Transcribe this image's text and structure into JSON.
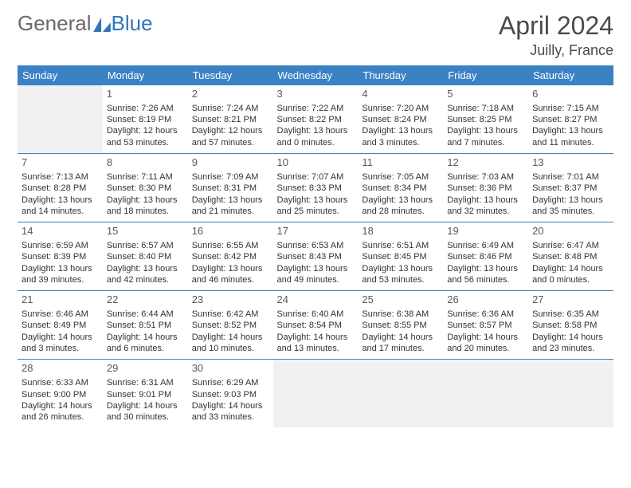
{
  "logo": {
    "text_a": "General",
    "text_b": "Blue",
    "color_a": "#6a6a6a",
    "color_b": "#2f76bb"
  },
  "title": "April 2024",
  "location": "Juilly, France",
  "colors": {
    "header_bg": "#3b82c4",
    "header_text": "#ffffff",
    "row_border": "#3b82c4",
    "empty_bg": "#f1f1f1",
    "text": "#333333",
    "title_color": "#4a4a4a"
  },
  "fonts": {
    "title_size": 32,
    "location_size": 18,
    "dow_size": 13,
    "daynum_size": 13,
    "cell_size": 11
  },
  "dow": [
    "Sunday",
    "Monday",
    "Tuesday",
    "Wednesday",
    "Thursday",
    "Friday",
    "Saturday"
  ],
  "grid": [
    [
      null,
      {
        "n": "1",
        "sunrise": "Sunrise: 7:26 AM",
        "sunset": "Sunset: 8:19 PM",
        "day1": "Daylight: 12 hours",
        "day2": "and 53 minutes."
      },
      {
        "n": "2",
        "sunrise": "Sunrise: 7:24 AM",
        "sunset": "Sunset: 8:21 PM",
        "day1": "Daylight: 12 hours",
        "day2": "and 57 minutes."
      },
      {
        "n": "3",
        "sunrise": "Sunrise: 7:22 AM",
        "sunset": "Sunset: 8:22 PM",
        "day1": "Daylight: 13 hours",
        "day2": "and 0 minutes."
      },
      {
        "n": "4",
        "sunrise": "Sunrise: 7:20 AM",
        "sunset": "Sunset: 8:24 PM",
        "day1": "Daylight: 13 hours",
        "day2": "and 3 minutes."
      },
      {
        "n": "5",
        "sunrise": "Sunrise: 7:18 AM",
        "sunset": "Sunset: 8:25 PM",
        "day1": "Daylight: 13 hours",
        "day2": "and 7 minutes."
      },
      {
        "n": "6",
        "sunrise": "Sunrise: 7:15 AM",
        "sunset": "Sunset: 8:27 PM",
        "day1": "Daylight: 13 hours",
        "day2": "and 11 minutes."
      }
    ],
    [
      {
        "n": "7",
        "sunrise": "Sunrise: 7:13 AM",
        "sunset": "Sunset: 8:28 PM",
        "day1": "Daylight: 13 hours",
        "day2": "and 14 minutes."
      },
      {
        "n": "8",
        "sunrise": "Sunrise: 7:11 AM",
        "sunset": "Sunset: 8:30 PM",
        "day1": "Daylight: 13 hours",
        "day2": "and 18 minutes."
      },
      {
        "n": "9",
        "sunrise": "Sunrise: 7:09 AM",
        "sunset": "Sunset: 8:31 PM",
        "day1": "Daylight: 13 hours",
        "day2": "and 21 minutes."
      },
      {
        "n": "10",
        "sunrise": "Sunrise: 7:07 AM",
        "sunset": "Sunset: 8:33 PM",
        "day1": "Daylight: 13 hours",
        "day2": "and 25 minutes."
      },
      {
        "n": "11",
        "sunrise": "Sunrise: 7:05 AM",
        "sunset": "Sunset: 8:34 PM",
        "day1": "Daylight: 13 hours",
        "day2": "and 28 minutes."
      },
      {
        "n": "12",
        "sunrise": "Sunrise: 7:03 AM",
        "sunset": "Sunset: 8:36 PM",
        "day1": "Daylight: 13 hours",
        "day2": "and 32 minutes."
      },
      {
        "n": "13",
        "sunrise": "Sunrise: 7:01 AM",
        "sunset": "Sunset: 8:37 PM",
        "day1": "Daylight: 13 hours",
        "day2": "and 35 minutes."
      }
    ],
    [
      {
        "n": "14",
        "sunrise": "Sunrise: 6:59 AM",
        "sunset": "Sunset: 8:39 PM",
        "day1": "Daylight: 13 hours",
        "day2": "and 39 minutes."
      },
      {
        "n": "15",
        "sunrise": "Sunrise: 6:57 AM",
        "sunset": "Sunset: 8:40 PM",
        "day1": "Daylight: 13 hours",
        "day2": "and 42 minutes."
      },
      {
        "n": "16",
        "sunrise": "Sunrise: 6:55 AM",
        "sunset": "Sunset: 8:42 PM",
        "day1": "Daylight: 13 hours",
        "day2": "and 46 minutes."
      },
      {
        "n": "17",
        "sunrise": "Sunrise: 6:53 AM",
        "sunset": "Sunset: 8:43 PM",
        "day1": "Daylight: 13 hours",
        "day2": "and 49 minutes."
      },
      {
        "n": "18",
        "sunrise": "Sunrise: 6:51 AM",
        "sunset": "Sunset: 8:45 PM",
        "day1": "Daylight: 13 hours",
        "day2": "and 53 minutes."
      },
      {
        "n": "19",
        "sunrise": "Sunrise: 6:49 AM",
        "sunset": "Sunset: 8:46 PM",
        "day1": "Daylight: 13 hours",
        "day2": "and 56 minutes."
      },
      {
        "n": "20",
        "sunrise": "Sunrise: 6:47 AM",
        "sunset": "Sunset: 8:48 PM",
        "day1": "Daylight: 14 hours",
        "day2": "and 0 minutes."
      }
    ],
    [
      {
        "n": "21",
        "sunrise": "Sunrise: 6:46 AM",
        "sunset": "Sunset: 8:49 PM",
        "day1": "Daylight: 14 hours",
        "day2": "and 3 minutes."
      },
      {
        "n": "22",
        "sunrise": "Sunrise: 6:44 AM",
        "sunset": "Sunset: 8:51 PM",
        "day1": "Daylight: 14 hours",
        "day2": "and 6 minutes."
      },
      {
        "n": "23",
        "sunrise": "Sunrise: 6:42 AM",
        "sunset": "Sunset: 8:52 PM",
        "day1": "Daylight: 14 hours",
        "day2": "and 10 minutes."
      },
      {
        "n": "24",
        "sunrise": "Sunrise: 6:40 AM",
        "sunset": "Sunset: 8:54 PM",
        "day1": "Daylight: 14 hours",
        "day2": "and 13 minutes."
      },
      {
        "n": "25",
        "sunrise": "Sunrise: 6:38 AM",
        "sunset": "Sunset: 8:55 PM",
        "day1": "Daylight: 14 hours",
        "day2": "and 17 minutes."
      },
      {
        "n": "26",
        "sunrise": "Sunrise: 6:36 AM",
        "sunset": "Sunset: 8:57 PM",
        "day1": "Daylight: 14 hours",
        "day2": "and 20 minutes."
      },
      {
        "n": "27",
        "sunrise": "Sunrise: 6:35 AM",
        "sunset": "Sunset: 8:58 PM",
        "day1": "Daylight: 14 hours",
        "day2": "and 23 minutes."
      }
    ],
    [
      {
        "n": "28",
        "sunrise": "Sunrise: 6:33 AM",
        "sunset": "Sunset: 9:00 PM",
        "day1": "Daylight: 14 hours",
        "day2": "and 26 minutes."
      },
      {
        "n": "29",
        "sunrise": "Sunrise: 6:31 AM",
        "sunset": "Sunset: 9:01 PM",
        "day1": "Daylight: 14 hours",
        "day2": "and 30 minutes."
      },
      {
        "n": "30",
        "sunrise": "Sunrise: 6:29 AM",
        "sunset": "Sunset: 9:03 PM",
        "day1": "Daylight: 14 hours",
        "day2": "and 33 minutes."
      },
      null,
      null,
      null,
      null
    ]
  ]
}
